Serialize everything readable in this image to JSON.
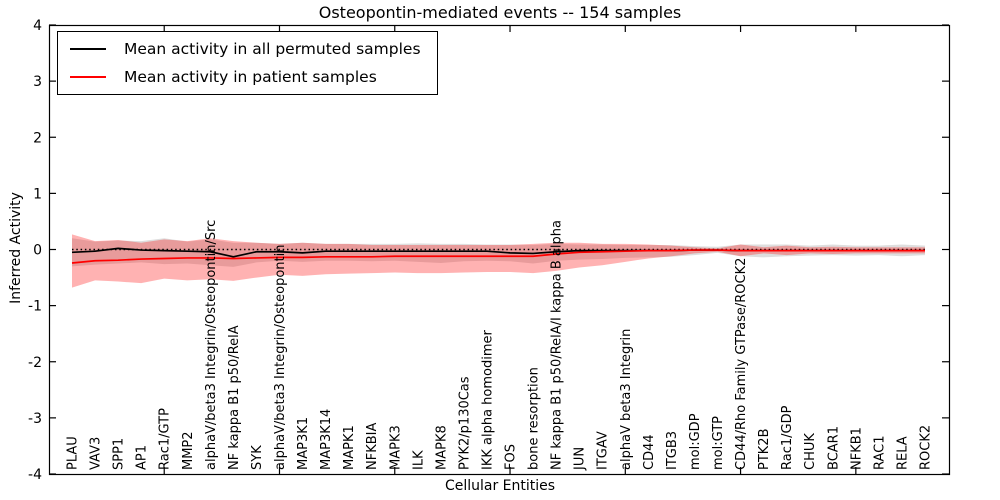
{
  "figure": {
    "title": "Osteopontin-mediated events -- 154 samples",
    "xlabel": "Cellular Entities",
    "ylabel": "Inferred Activity"
  },
  "legend": {
    "items": [
      {
        "label": "Mean activity in all permuted samples",
        "color": "#000000"
      },
      {
        "label": "Mean activity in patient samples",
        "color": "#ff0000"
      }
    ]
  },
  "chart_data": {
    "type": "line",
    "title": "Osteopontin-mediated events -- 154 samples",
    "xlabel": "Cellular Entities",
    "ylabel": "Inferred Activity",
    "ylim": [
      -4,
      4
    ],
    "yticks": [
      4,
      3,
      2,
      1,
      0,
      -1,
      -2,
      -3,
      -4
    ],
    "grid": false,
    "legend_position": "upper left",
    "x_major_tick_indices": [
      4,
      9,
      14,
      19,
      24,
      29,
      34
    ],
    "zero_line": {
      "y": 0,
      "style": "dotted",
      "color": "#000000"
    },
    "categories": [
      "PLAU",
      "VAV3",
      "SPP1",
      "AP1",
      "Rac1/GTP",
      "MMP2",
      "alphaV/beta3 Integrin/Osteopontin/Src",
      "NF kappa B1 p50/RelA",
      "SYK",
      "alphaV/beta3 Integrin/Osteopontin",
      "MAP3K1",
      "MAP3K14",
      "MAPK1",
      "NFKBIA",
      "MAPK3",
      "ILK",
      "MAPK8",
      "PYK2/p130Cas",
      "IKK alpha homodimer",
      "FOS",
      "bone resorption",
      "NF kappa B1 p50/RelA/I kappa B alpha",
      "JUN",
      "ITGAV",
      "alphaV beta3 Integrin",
      "CD44",
      "ITGB3",
      "mol:GDP",
      "mol:GTP",
      "CD44/Rho Family GTPase/ROCK2",
      "PTK2B",
      "Rac1/GDP",
      "CHUK",
      "BCAR1",
      "NFKB1",
      "RAC1",
      "RELA",
      "ROCK2"
    ],
    "series": [
      {
        "name": "Mean activity in all permuted samples",
        "color": "#000000",
        "values": [
          -0.05,
          -0.03,
          0.02,
          -0.01,
          -0.02,
          -0.03,
          -0.04,
          -0.13,
          -0.04,
          -0.04,
          -0.06,
          -0.03,
          -0.03,
          -0.03,
          -0.03,
          -0.03,
          -0.03,
          -0.03,
          -0.03,
          -0.06,
          -0.07,
          -0.04,
          -0.02,
          -0.02,
          -0.02,
          -0.02,
          -0.02,
          -0.01,
          -0.01,
          -0.02,
          -0.02,
          -0.02,
          -0.02,
          -0.02,
          -0.02,
          -0.02,
          -0.02,
          -0.02
        ]
      },
      {
        "name": "Mean activity in patient samples",
        "color": "#ff0000",
        "values": [
          -0.24,
          -0.2,
          -0.19,
          -0.17,
          -0.16,
          -0.15,
          -0.15,
          -0.16,
          -0.15,
          -0.14,
          -0.14,
          -0.13,
          -0.13,
          -0.13,
          -0.12,
          -0.12,
          -0.12,
          -0.12,
          -0.12,
          -0.12,
          -0.12,
          -0.08,
          -0.05,
          -0.04,
          -0.03,
          -0.02,
          -0.02,
          -0.01,
          -0.01,
          -0.02,
          -0.02,
          -0.02,
          -0.02,
          -0.02,
          -0.02,
          -0.02,
          -0.02,
          -0.02
        ]
      }
    ],
    "bands": [
      {
        "name": "permuted-samples-band",
        "color": "#000000",
        "opacity": 0.13,
        "upper": [
          0.2,
          0.14,
          0.16,
          0.15,
          0.2,
          0.14,
          0.18,
          0.12,
          0.12,
          0.1,
          0.12,
          0.1,
          0.1,
          0.1,
          0.1,
          0.11,
          0.1,
          0.1,
          0.09,
          0.09,
          0.08,
          0.1,
          0.09,
          0.09,
          0.08,
          0.08,
          0.08,
          0.06,
          0.05,
          0.09,
          0.09,
          0.09,
          0.07,
          0.09,
          0.07,
          0.07,
          0.09,
          0.07
        ],
        "lower": [
          -0.3,
          -0.27,
          -0.25,
          -0.23,
          -0.26,
          -0.25,
          -0.28,
          -0.31,
          -0.23,
          -0.2,
          -0.22,
          -0.2,
          -0.2,
          -0.21,
          -0.2,
          -0.22,
          -0.24,
          -0.21,
          -0.2,
          -0.21,
          -0.25,
          -0.2,
          -0.18,
          -0.17,
          -0.15,
          -0.14,
          -0.13,
          -0.1,
          -0.06,
          -0.12,
          -0.14,
          -0.12,
          -0.11,
          -0.1,
          -0.11,
          -0.1,
          -0.12,
          -0.1
        ]
      },
      {
        "name": "patient-samples-band",
        "color": "#ff0000",
        "opacity": 0.3,
        "upper": [
          0.27,
          0.15,
          0.17,
          0.12,
          0.18,
          0.15,
          0.2,
          0.15,
          0.12,
          0.1,
          0.12,
          0.1,
          0.1,
          0.08,
          0.08,
          0.08,
          0.08,
          0.08,
          0.08,
          0.08,
          0.1,
          0.12,
          0.12,
          0.1,
          0.1,
          0.09,
          0.07,
          0.04,
          0.02,
          0.09,
          0.04,
          0.07,
          0.04,
          0.05,
          0.04,
          0.04,
          0.04,
          0.04
        ],
        "lower": [
          -0.68,
          -0.55,
          -0.57,
          -0.6,
          -0.52,
          -0.55,
          -0.53,
          -0.56,
          -0.5,
          -0.45,
          -0.47,
          -0.44,
          -0.43,
          -0.42,
          -0.41,
          -0.42,
          -0.42,
          -0.41,
          -0.4,
          -0.4,
          -0.42,
          -0.38,
          -0.32,
          -0.28,
          -0.22,
          -0.16,
          -0.12,
          -0.07,
          -0.04,
          -0.12,
          -0.07,
          -0.1,
          -0.07,
          -0.08,
          -0.07,
          -0.07,
          -0.07,
          -0.07
        ]
      }
    ]
  }
}
